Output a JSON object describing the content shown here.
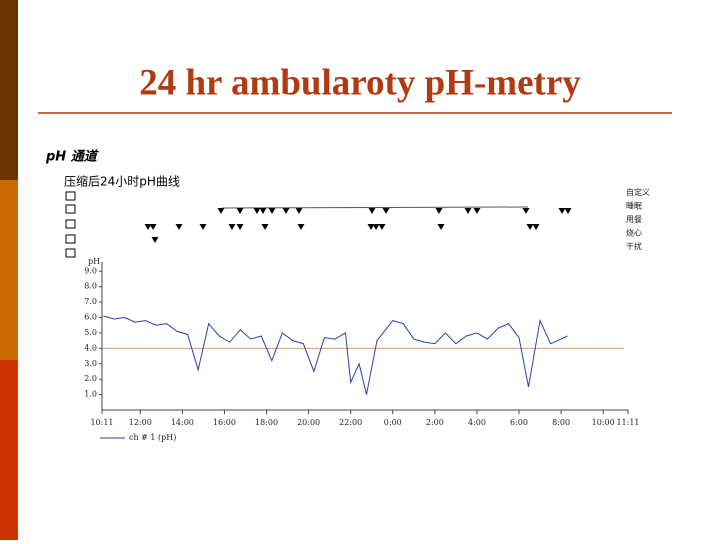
{
  "title": "24 hr ambularoty pH-metry",
  "chart_data": {
    "type": "line",
    "channel_title": "pH 通道",
    "subtitle": "压缩后24小时pH曲线",
    "ylabel": "pH",
    "event_labels": [
      "自定义",
      "睡眠",
      "用餐",
      "烧心",
      "干扰"
    ],
    "xlim": [
      10.18,
      35.18
    ],
    "xticks": [
      {
        "value": 10.18,
        "label": "10:11"
      },
      {
        "value": 12,
        "label": "12:00"
      },
      {
        "value": 14,
        "label": "14:00"
      },
      {
        "value": 16,
        "label": "16:00"
      },
      {
        "value": 18,
        "label": "18:00"
      },
      {
        "value": 20,
        "label": "20:00"
      },
      {
        "value": 22,
        "label": "22:00"
      },
      {
        "value": 24,
        "label": "0:00"
      },
      {
        "value": 26,
        "label": "2:00"
      },
      {
        "value": 28,
        "label": "4:00"
      },
      {
        "value": 30,
        "label": "6:00"
      },
      {
        "value": 32,
        "label": "8:00"
      },
      {
        "value": 34,
        "label": "10:00"
      },
      {
        "value": 35.18,
        "label": "11:11"
      }
    ],
    "ylim": [
      0,
      9.6
    ],
    "yticks": [
      {
        "value": 1,
        "label": "1.0"
      },
      {
        "value": 2,
        "label": "2.0"
      },
      {
        "value": 3,
        "label": "3.0"
      },
      {
        "value": 4,
        "label": "4.0"
      },
      {
        "value": 5,
        "label": "5.0"
      },
      {
        "value": 6,
        "label": "6.0"
      },
      {
        "value": 7,
        "label": "7.0"
      },
      {
        "value": 8,
        "label": "8.0"
      },
      {
        "value": 9,
        "label": "9.0"
      }
    ],
    "reference_line": 4,
    "reference_color": "#d89a70",
    "series": [
      {
        "name": "ch # 1 (pH)",
        "color": "#2a3fb0",
        "x": [
          10.25,
          10.75,
          11.25,
          11.75,
          12.25,
          12.75,
          13.25,
          13.75,
          14.25,
          14.75,
          15.25,
          15.75,
          16.25,
          16.75,
          17.25,
          17.75,
          18.25,
          18.75,
          19.25,
          19.75,
          20.25,
          20.75,
          21.25,
          21.75,
          22.0,
          22.4,
          22.75,
          23.25,
          24,
          24.5,
          25,
          25.5,
          26,
          26.5,
          27,
          27.5,
          28,
          28.5,
          29,
          29.5,
          30,
          30.45,
          31,
          31.5,
          32,
          32.3
        ],
        "values": [
          6.1,
          5.9,
          6.0,
          5.7,
          5.8,
          5.5,
          5.6,
          5.1,
          4.9,
          2.6,
          5.6,
          4.8,
          4.4,
          5.2,
          4.6,
          4.8,
          3.2,
          5.0,
          4.5,
          4.3,
          2.5,
          4.7,
          4.6,
          5.0,
          1.8,
          3.0,
          1.0,
          4.5,
          5.8,
          5.6,
          4.6,
          4.4,
          4.3,
          5.0,
          4.3,
          4.8,
          5.0,
          4.6,
          5.3,
          5.6,
          4.7,
          1.5,
          5.8,
          4.3,
          4.6,
          4.8
        ]
      }
    ]
  }
}
